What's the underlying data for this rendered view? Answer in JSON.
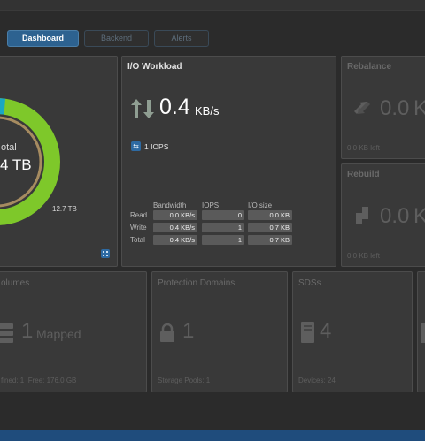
{
  "tabs": [
    {
      "label": "Dashboard",
      "active": true
    },
    {
      "label": "Backend",
      "active": false
    },
    {
      "label": "Alerts",
      "active": false
    }
  ],
  "capacity": {
    "total_label": "otal",
    "total_value": "4 TB",
    "free_value": "12.7 TB",
    "used_fraction": 0.03,
    "ring_color": "#7ec82a",
    "used_color": "#1aa7c4",
    "inner_ring_color": "#a68b60"
  },
  "io_workload": {
    "title": "I/O Workload",
    "value": "0.4",
    "unit": "KB/s",
    "iops": "1 IOPS",
    "headers": [
      "Bandwidth",
      "IOPS",
      "I/O size"
    ],
    "rows": [
      {
        "label": "Read",
        "bandwidth": "0.0 KB/s",
        "iops": "0",
        "size": "0.0 KB"
      },
      {
        "label": "Write",
        "bandwidth": "0.4 KB/s",
        "iops": "1",
        "size": "0.7 KB"
      },
      {
        "label": "Total",
        "bandwidth": "0.4 KB/s",
        "iops": "1",
        "size": "0.7 KB"
      }
    ]
  },
  "rebalance": {
    "title": "Rebalance",
    "value": "0.0",
    "unit": "K",
    "left": "0.0 KB left"
  },
  "rebuild": {
    "title": "Rebuild",
    "value": "0.0",
    "unit": "K",
    "left": "0.0 KB left"
  },
  "volumes": {
    "title": "olumes",
    "count": "1",
    "label": "Mapped",
    "footer": "fined: 1  Free: 176.0 GB"
  },
  "protection_domains": {
    "title": "Protection Domains",
    "count": "1",
    "footer": "Storage Pools: 1"
  },
  "sdss": {
    "title": "SDSs",
    "count": "4",
    "footer": "Devices: 24"
  }
}
